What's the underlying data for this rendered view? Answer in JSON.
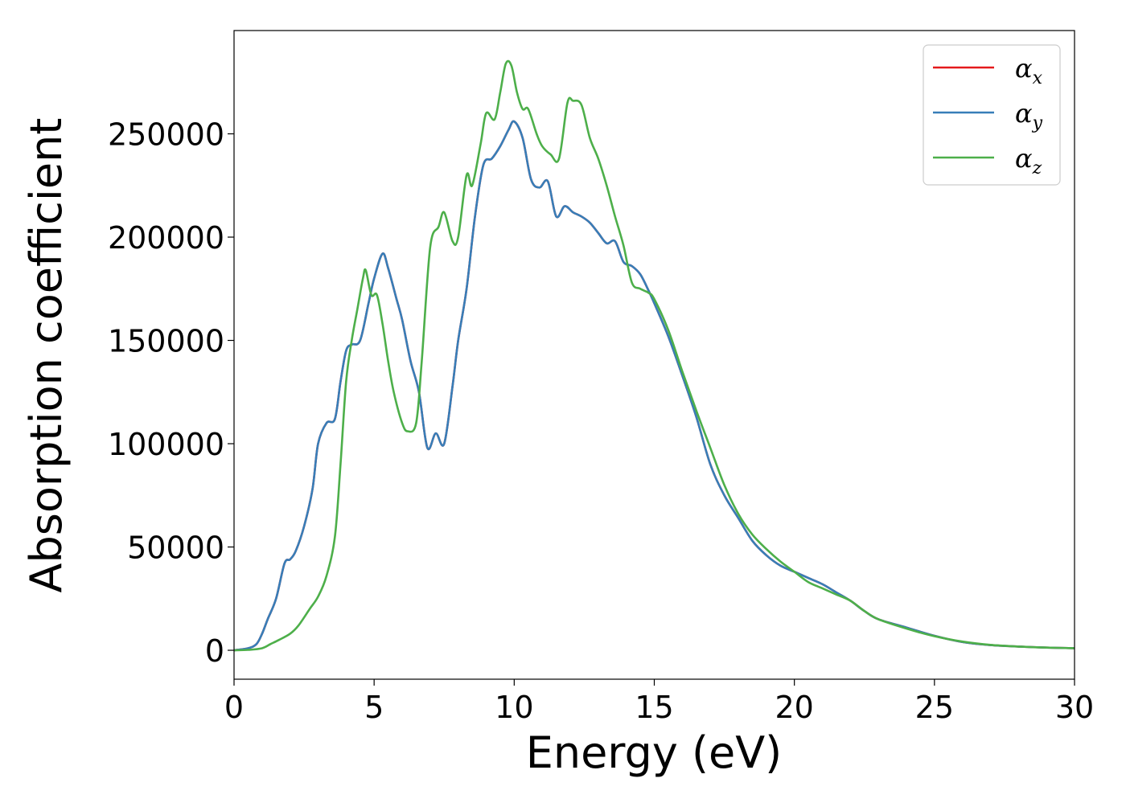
{
  "chart_data": {
    "type": "line",
    "title": "",
    "xlabel": "Energy (eV)",
    "ylabel": "Absorption coefficient",
    "xlim": [
      0,
      30
    ],
    "ylim": [
      -14000,
      300000
    ],
    "xticks": [
      0,
      5,
      10,
      15,
      20,
      25,
      30
    ],
    "yticks": [
      0,
      50000,
      100000,
      150000,
      200000,
      250000
    ],
    "grid": false,
    "legend_position": "top-right",
    "series": [
      {
        "name": "αx",
        "symbol": "α",
        "subscript": "x",
        "color": "#e41a1c",
        "x": [
          0,
          0.5,
          0.8,
          1.0,
          1.2,
          1.5,
          1.8,
          2.0,
          2.2,
          2.5,
          2.8,
          3.0,
          3.3,
          3.6,
          3.8,
          4.0,
          4.2,
          4.5,
          4.8,
          5.0,
          5.3,
          5.5,
          5.8,
          6.0,
          6.3,
          6.6,
          6.9,
          7.2,
          7.5,
          7.8,
          8.0,
          8.3,
          8.6,
          8.9,
          9.2,
          9.5,
          9.8,
          10.0,
          10.3,
          10.6,
          10.9,
          11.2,
          11.5,
          11.8,
          12.1,
          12.4,
          12.7,
          13.0,
          13.3,
          13.6,
          13.9,
          14.2,
          14.5,
          14.8,
          15.0,
          15.5,
          16.0,
          16.5,
          17.0,
          17.5,
          18.0,
          18.5,
          19.0,
          19.5,
          20.0,
          20.5,
          21.0,
          21.5,
          22.0,
          22.5,
          23.0,
          24.0,
          25.0,
          26.0,
          27.0,
          28.0,
          29.0,
          30.0
        ],
        "y": [
          0,
          1000,
          3000,
          8000,
          15000,
          25000,
          42000,
          44000,
          48000,
          60000,
          78000,
          100000,
          110000,
          112000,
          130000,
          145000,
          148000,
          150000,
          168000,
          180000,
          192000,
          185000,
          170000,
          160000,
          140000,
          125000,
          98000,
          105000,
          100000,
          128000,
          150000,
          175000,
          210000,
          235000,
          238000,
          244000,
          252000,
          256000,
          248000,
          228000,
          224000,
          227000,
          210000,
          215000,
          212000,
          210000,
          207000,
          202000,
          197000,
          198000,
          188000,
          186000,
          182000,
          174000,
          168000,
          152000,
          133000,
          113000,
          90000,
          75000,
          64000,
          53000,
          46000,
          41000,
          38000,
          35000,
          32000,
          28000,
          24000,
          19000,
          15000,
          11000,
          7000,
          4000,
          2500,
          1800,
          1300,
          1000
        ]
      },
      {
        "name": "αy",
        "symbol": "α",
        "subscript": "y",
        "color": "#377eb8",
        "x": [
          0,
          0.5,
          0.8,
          1.0,
          1.2,
          1.5,
          1.8,
          2.0,
          2.2,
          2.5,
          2.8,
          3.0,
          3.3,
          3.6,
          3.8,
          4.0,
          4.2,
          4.5,
          4.8,
          5.0,
          5.3,
          5.5,
          5.8,
          6.0,
          6.3,
          6.6,
          6.9,
          7.2,
          7.5,
          7.8,
          8.0,
          8.3,
          8.6,
          8.9,
          9.2,
          9.5,
          9.8,
          10.0,
          10.3,
          10.6,
          10.9,
          11.2,
          11.5,
          11.8,
          12.1,
          12.4,
          12.7,
          13.0,
          13.3,
          13.6,
          13.9,
          14.2,
          14.5,
          14.8,
          15.0,
          15.5,
          16.0,
          16.5,
          17.0,
          17.5,
          18.0,
          18.5,
          19.0,
          19.5,
          20.0,
          20.5,
          21.0,
          21.5,
          22.0,
          22.5,
          23.0,
          24.0,
          25.0,
          26.0,
          27.0,
          28.0,
          29.0,
          30.0
        ],
        "y": [
          0,
          1000,
          3000,
          8000,
          15000,
          25000,
          42000,
          44000,
          48000,
          60000,
          78000,
          100000,
          110000,
          112000,
          130000,
          145000,
          148000,
          150000,
          168000,
          180000,
          192000,
          185000,
          170000,
          160000,
          140000,
          125000,
          98000,
          105000,
          100000,
          128000,
          150000,
          175000,
          210000,
          235000,
          238000,
          244000,
          252000,
          256000,
          248000,
          228000,
          224000,
          227000,
          210000,
          215000,
          212000,
          210000,
          207000,
          202000,
          197000,
          198000,
          188000,
          186000,
          182000,
          174000,
          168000,
          152000,
          133000,
          113000,
          90000,
          75000,
          64000,
          53000,
          46000,
          41000,
          38000,
          35000,
          32000,
          28000,
          24000,
          19000,
          15000,
          11000,
          7000,
          4000,
          2500,
          1800,
          1300,
          1000
        ]
      },
      {
        "name": "αz",
        "symbol": "α",
        "subscript": "z",
        "color": "#4daf4a",
        "x": [
          0,
          0.5,
          1.0,
          1.3,
          1.6,
          2.0,
          2.3,
          2.7,
          3.0,
          3.3,
          3.6,
          3.8,
          4.0,
          4.2,
          4.4,
          4.6,
          4.7,
          4.9,
          5.1,
          5.3,
          5.5,
          5.7,
          6.0,
          6.2,
          6.5,
          6.7,
          7.0,
          7.3,
          7.5,
          7.8,
          8.0,
          8.3,
          8.5,
          8.8,
          9.0,
          9.3,
          9.5,
          9.7,
          9.9,
          10.1,
          10.3,
          10.5,
          10.8,
          11.0,
          11.3,
          11.6,
          11.9,
          12.1,
          12.4,
          12.7,
          13.0,
          13.3,
          13.6,
          13.9,
          14.2,
          14.5,
          14.8,
          15.0,
          15.5,
          16.0,
          16.5,
          17.0,
          17.5,
          18.0,
          18.5,
          19.0,
          19.5,
          20.0,
          20.5,
          21.0,
          21.5,
          22.0,
          22.5,
          23.0,
          24.0,
          25.0,
          26.0,
          27.0,
          28.0,
          29.0,
          30.0
        ],
        "y": [
          0,
          200,
          1000,
          3000,
          5000,
          8000,
          12000,
          20000,
          26000,
          36000,
          55000,
          90000,
          130000,
          150000,
          165000,
          180000,
          184000,
          172000,
          172000,
          158000,
          140000,
          125000,
          110000,
          106000,
          110000,
          140000,
          195000,
          205000,
          212000,
          198000,
          200000,
          230000,
          225000,
          245000,
          260000,
          257000,
          270000,
          284000,
          283000,
          270000,
          262000,
          262000,
          250000,
          244000,
          240000,
          238000,
          265000,
          266000,
          264000,
          248000,
          238000,
          225000,
          210000,
          196000,
          178000,
          175000,
          173000,
          170000,
          155000,
          135000,
          116000,
          98000,
          80000,
          66000,
          56000,
          49000,
          43000,
          38000,
          33000,
          30000,
          27000,
          24000,
          19000,
          15000,
          10500,
          6800,
          4200,
          2600,
          1800,
          1300,
          1000
        ]
      }
    ]
  }
}
